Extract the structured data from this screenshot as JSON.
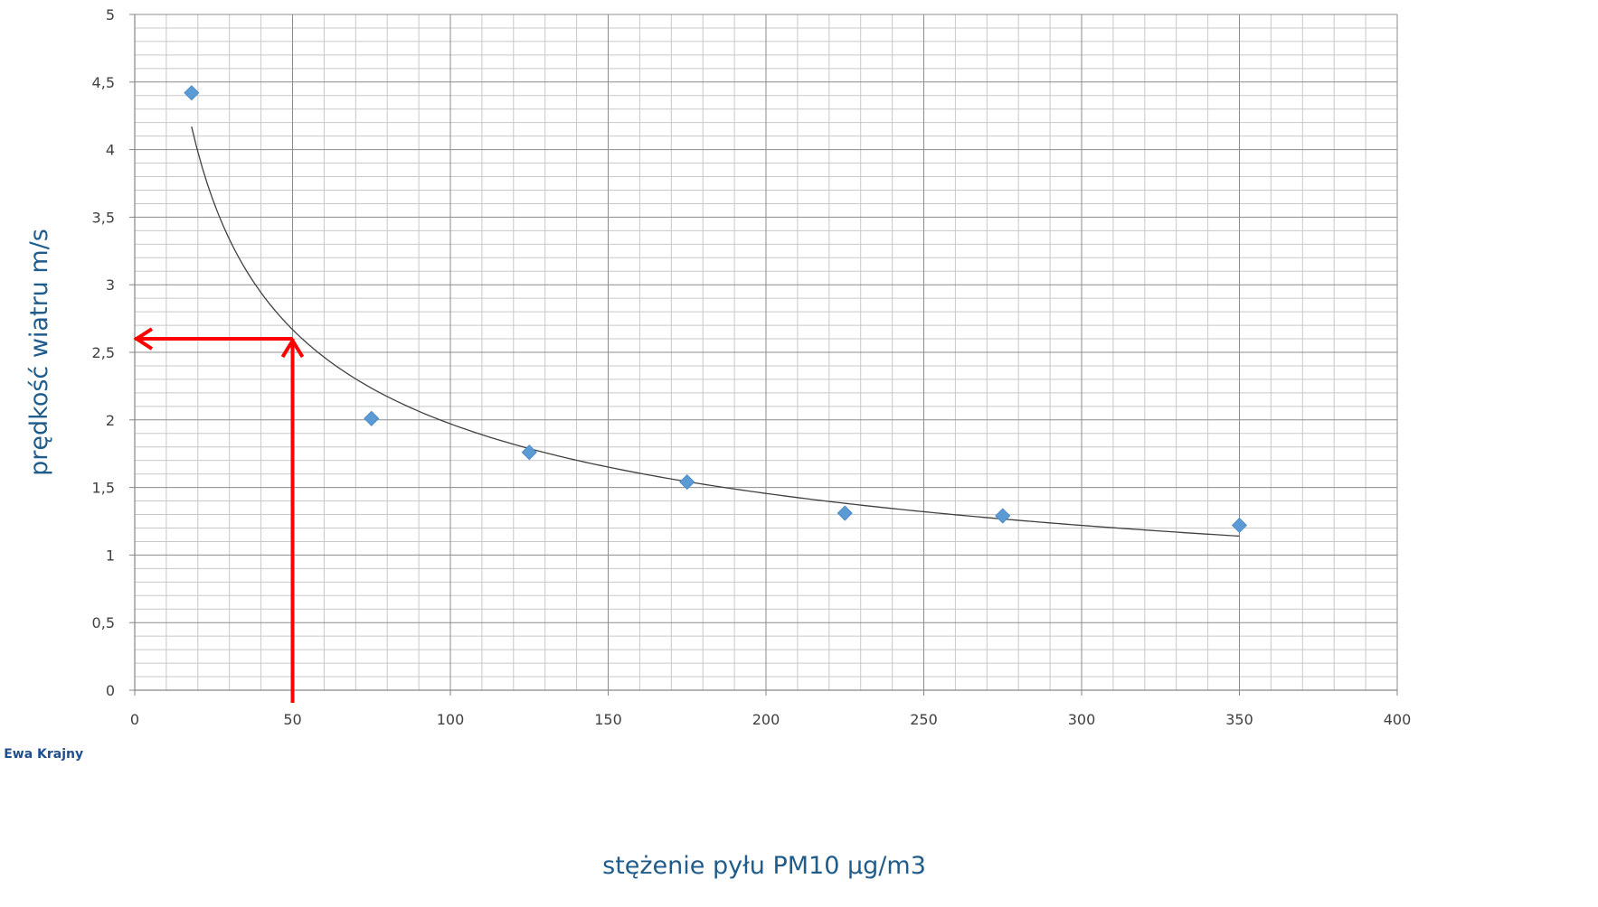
{
  "chart_data": {
    "type": "scatter",
    "xlabel": "stężenie pyłu PM10 µg/m3",
    "ylabel": "prędkość wiatru m/s",
    "xlim": [
      0,
      400
    ],
    "ylim": [
      0,
      5
    ],
    "x_ticks": [
      "0",
      "50",
      "100",
      "150",
      "200",
      "250",
      "300",
      "350",
      "400"
    ],
    "y_ticks": [
      "0",
      "0,5",
      "1",
      "1,5",
      "2",
      "2,5",
      "3",
      "3,5",
      "4",
      "4,5",
      "5"
    ],
    "grid": true,
    "series": [
      {
        "x": [
          18,
          75,
          125,
          175,
          225,
          275,
          350
        ],
        "y": [
          4.42,
          2.01,
          1.76,
          1.54,
          1.31,
          1.29,
          1.22
        ],
        "color": "#5b9bd5",
        "marker": "diamond"
      }
    ],
    "trendline": {
      "type": "power",
      "x_start": 18,
      "x_end": 350,
      "y_start": 4.17,
      "y_end": 1.14,
      "color": "#404040"
    },
    "annotations": [
      {
        "type": "arrow-up",
        "x": 50,
        "from_y": 0,
        "to_y": 2.6,
        "color": "#ff0000"
      },
      {
        "type": "arrow-left",
        "y": 2.6,
        "from_x": 50,
        "to_x": 0,
        "color": "#ff0000"
      }
    ],
    "credit": ", Ewa Krajny"
  }
}
